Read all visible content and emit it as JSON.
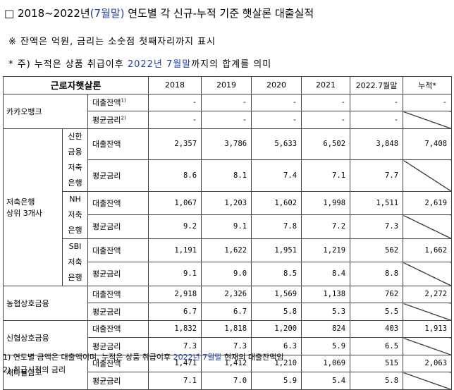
{
  "title": {
    "prefix": "□ 2018~2022년",
    "highlight": "(7월말)",
    "suffix": " 연도별 각 신규-누적 기준 햇살론 대출실적"
  },
  "note1": "※ 잔액은 억원, 금리는 소숫점 첫째자리까지 표시",
  "note2": {
    "prefix": "* 주) 누적은 상품 취급이후 ",
    "highlight": "2022년 7월말",
    "suffix": "까지의 합계를 의미"
  },
  "table": {
    "corner": "근로자햇살론",
    "columns": [
      "2018",
      "2019",
      "2020",
      "2021",
      "2022.7월말",
      "누적*"
    ],
    "kakao": {
      "name": "카카오뱅크",
      "balance_label": "대출잔액",
      "balance_sup": "1)",
      "rate_label": "평균금리",
      "rate_sup": "2)",
      "balance": [
        "-",
        "-",
        "-",
        "-",
        "-",
        "-"
      ],
      "rate": [
        "-",
        "-",
        "-",
        "-",
        "-"
      ]
    },
    "savings_group": {
      "line1": "저축은행",
      "line2": "상위 3개사"
    },
    "banks": [
      {
        "name1": "신한금융",
        "name2": "저축은행",
        "balance_label": "대출잔액",
        "rate_label": "평균금리",
        "balance": [
          "2,357",
          "3,786",
          "5,633",
          "6,502",
          "3,848",
          "7,408"
        ],
        "rate": [
          "8.6",
          "8.1",
          "7.4",
          "7.1",
          "7.7"
        ]
      },
      {
        "name1": "NH",
        "name2": "저축은행",
        "balance_label": "대출잔액",
        "rate_label": "평균금리",
        "balance": [
          "1,067",
          "1,203",
          "1,602",
          "1,998",
          "1,511",
          "2,619"
        ],
        "rate": [
          "9.2",
          "9.1",
          "7.8",
          "7.2",
          "7.3"
        ]
      },
      {
        "name1": "SBI",
        "name2": "저축은행",
        "balance_label": "대출잔액",
        "rate_label": "평균금리",
        "balance": [
          "1,191",
          "1,622",
          "1,951",
          "1,219",
          "562",
          "1,662"
        ],
        "rate": [
          "9.1",
          "9.0",
          "8.5",
          "8.4",
          "8.8"
        ]
      }
    ],
    "others": [
      {
        "name": "농협상호금융",
        "balance_label": "대출잔액",
        "rate_label": "평균금리",
        "balance": [
          "2,918",
          "2,326",
          "1,569",
          "1,138",
          "762",
          "2,272"
        ],
        "rate": [
          "6.7",
          "6.7",
          "5.8",
          "5.3",
          "5.5"
        ]
      },
      {
        "name": "신협상호금융",
        "balance_label": "대출잔액",
        "rate_label": "평균금리",
        "balance": [
          "1,832",
          "1,818",
          "1,200",
          "824",
          "403",
          "1,913"
        ],
        "rate": [
          "7.3",
          "7.3",
          "6.3",
          "5.9",
          "6.5"
        ]
      },
      {
        "name": "새마을금고",
        "balance_label": "대출잔액",
        "rate_label": "평균금리",
        "balance": [
          "1,471",
          "1,412",
          "1,210",
          "1,069",
          "515",
          "2,063"
        ],
        "rate": [
          "7.1",
          "7.0",
          "5.9",
          "5.4",
          "5.8"
        ]
      }
    ]
  },
  "footnote1": {
    "prefix": "1) 연도별 금액은 대출액이며, 누적은 상품 취급이후 ",
    "highlight": "2022년 7월말",
    "suffix": " 현재의 대출잔액임"
  },
  "footnote2": "2) 취급시점의 금리",
  "colors": {
    "accent": "#1f3fae",
    "border": "#444444"
  }
}
